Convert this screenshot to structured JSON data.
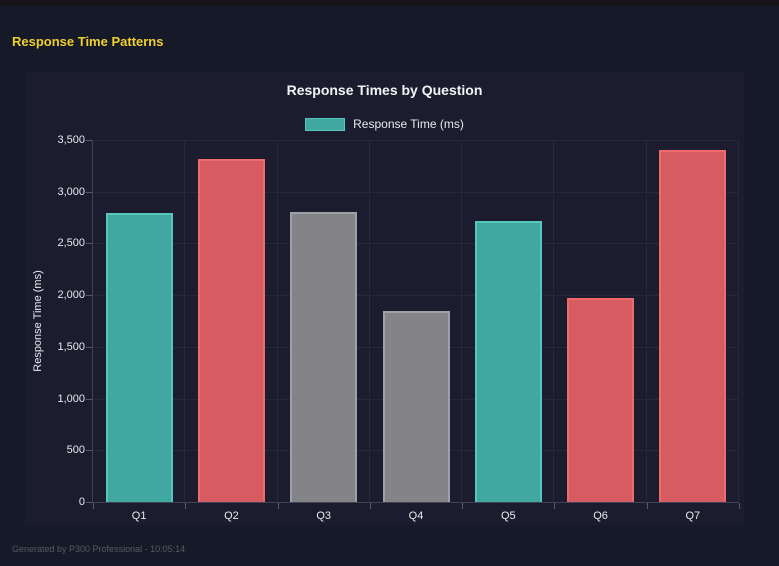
{
  "window": {
    "header_title": "Response Time Patterns",
    "footer": "Generated by P300 Professional - 10:05:14"
  },
  "colors": {
    "page_bg": "#161927",
    "top_strip": "#151517",
    "panel_bg": "#1b1d2e",
    "header_title": "#f0d02f",
    "grid": "#262938",
    "axis": "#3f4353",
    "tick": "#565a6a",
    "text_bright": "#f2f3f6",
    "text_main": "#e8eaee",
    "muted": "#565a66"
  },
  "chart_data": {
    "type": "bar",
    "title": "Response Times by Question",
    "categories": [
      "Q1",
      "Q2",
      "Q3",
      "Q4",
      "Q5",
      "Q6",
      "Q7"
    ],
    "values": [
      2790,
      3320,
      2800,
      1850,
      2720,
      1970,
      3400
    ],
    "bar_color_roles": [
      "teal",
      "red",
      "gray",
      "gray",
      "teal",
      "red",
      "red"
    ],
    "palette": {
      "teal": {
        "fill": "#41a8a1",
        "border": "#55c6bd"
      },
      "red": {
        "fill": "#d65c61",
        "border": "#ef6a6f"
      },
      "gray": {
        "fill": "#848488",
        "border": "#9fa0a5"
      }
    },
    "legend": [
      {
        "label": "Response Time (ms)",
        "swatch": "teal"
      }
    ],
    "legend_position": "top",
    "xlabel": "",
    "ylabel": "Response Time (ms)",
    "ylim": [
      0,
      3500
    ],
    "ytick_step": 500,
    "grid": true
  }
}
